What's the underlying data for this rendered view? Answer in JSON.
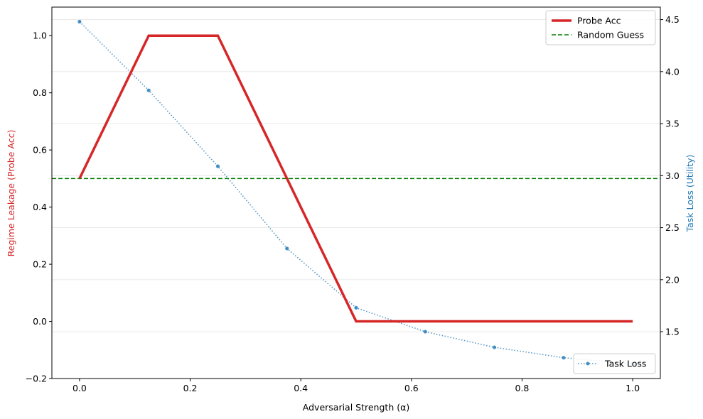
{
  "chart_data": {
    "type": "line",
    "xlabel": "Adversarial Strength (α)",
    "ylabel_left": "Regime Leakage (Probe Acc)",
    "ylabel_right": "Task Loss (Utility)",
    "x_ticks": [
      "0.0",
      "0.2",
      "0.4",
      "0.6",
      "0.8",
      "1.0"
    ],
    "y_left_ticks": [
      "−0.2",
      "0.0",
      "0.2",
      "0.4",
      "0.6",
      "0.8",
      "1.0"
    ],
    "y_right_ticks": [
      "1.5",
      "2.0",
      "2.5",
      "3.0",
      "3.5",
      "4.0",
      "4.5"
    ],
    "xlim": [
      -0.05,
      1.05
    ],
    "ylim_left": [
      -0.2,
      1.1
    ],
    "ylim_right": [
      1.05,
      4.62
    ],
    "grid": "horizontal (right axis)",
    "colors": {
      "probe": "#d62728",
      "random": "#008000",
      "loss": "#1f77b4",
      "left_label": "#d62728",
      "right_label": "#1f77b4"
    },
    "series": [
      {
        "name": "Probe Acc",
        "axis": "left",
        "style": "solid",
        "x": [
          0.0,
          0.125,
          0.25,
          0.375,
          0.5,
          0.625,
          0.75,
          0.875,
          1.0
        ],
        "y": [
          0.5,
          1.0,
          1.0,
          0.5,
          0.0,
          0.0,
          0.0,
          0.0,
          0.0
        ]
      },
      {
        "name": "Random Guess",
        "axis": "left",
        "style": "dashed",
        "y": 0.5
      },
      {
        "name": "Task Loss",
        "axis": "right",
        "style": "dotted-markers",
        "x": [
          0.0,
          0.125,
          0.25,
          0.375,
          0.5,
          0.625,
          0.75,
          0.875,
          1.0
        ],
        "y": [
          4.48,
          3.82,
          3.09,
          2.3,
          1.73,
          1.5,
          1.35,
          1.25,
          1.19
        ]
      }
    ],
    "legend_top": [
      "Probe Acc",
      "Random Guess"
    ],
    "legend_bottom": [
      "Task Loss"
    ],
    "legend_placement": [
      "top-right",
      "bottom-right"
    ]
  }
}
